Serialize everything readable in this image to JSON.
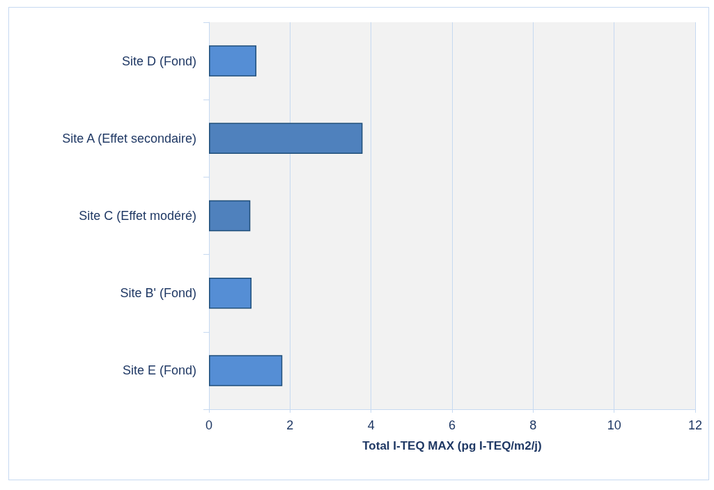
{
  "chart_data": {
    "type": "bar",
    "orientation": "horizontal",
    "xlabel": "Total I-TEQ MAX (pg I-TEQ/m2/j)",
    "categories": [
      "Site D (Fond)",
      "Site A (Effet secondaire)",
      "Site C (Effet modéré)",
      "Site B' (Fond)",
      "Site E (Fond)"
    ],
    "values": [
      1.17,
      3.79,
      1.02,
      1.05,
      1.81
    ],
    "colors": [
      "#558ed5",
      "#4f81bd",
      "#4f81bd",
      "#558ed5",
      "#558ed5"
    ],
    "xlim": [
      0,
      12
    ],
    "xticks": [
      0,
      2,
      4,
      6,
      8,
      10,
      12
    ],
    "grid": "x"
  }
}
